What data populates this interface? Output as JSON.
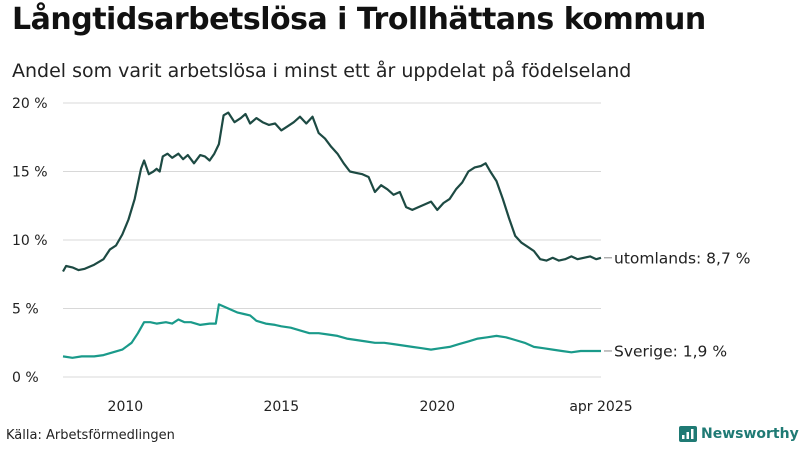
{
  "title": "Långtidsarbetslösa i Trollhättans kommun",
  "subtitle": "Andel som varit arbetslösa i minst ett år uppdelat på födelseland",
  "source": "Källa: Arbetsförmedlingen",
  "logo_text": "Newsworthy",
  "colors": {
    "utomlands": "#1d4a43",
    "sverige": "#1a9a8a",
    "grid": "#d8d8d8",
    "brand": "#1f7a74"
  },
  "chart_data": {
    "type": "line",
    "title": "Långtidsarbetslösa i Trollhättans kommun",
    "subtitle": "Andel som varit arbetslösa i minst ett år uppdelat på födelseland",
    "xlim": [
      2008.0,
      2025.25
    ],
    "ylim": [
      0,
      20
    ],
    "x_ticks": [
      {
        "value": 2010,
        "label": "2010"
      },
      {
        "value": 2015,
        "label": "2015"
      },
      {
        "value": 2020,
        "label": "2020"
      },
      {
        "value": 2025.25,
        "label": "apr 2025"
      }
    ],
    "y_ticks": [
      {
        "value": 0,
        "label": "0 %"
      },
      {
        "value": 5,
        "label": "5 %"
      },
      {
        "value": 10,
        "label": "10 %"
      },
      {
        "value": 15,
        "label": "15 %"
      },
      {
        "value": 20,
        "label": "20 %"
      }
    ],
    "grid": true,
    "series": [
      {
        "key": "utomlands",
        "end_label": "utomlands: 8,7 %",
        "x": [
          2008.0,
          2008.1,
          2008.3,
          2008.5,
          2008.7,
          2009.0,
          2009.3,
          2009.5,
          2009.7,
          2009.9,
          2010.1,
          2010.3,
          2010.5,
          2010.6,
          2010.75,
          2010.9,
          2011.0,
          2011.1,
          2011.2,
          2011.35,
          2011.5,
          2011.7,
          2011.85,
          2012.0,
          2012.2,
          2012.4,
          2012.55,
          2012.7,
          2012.85,
          2013.0,
          2013.15,
          2013.3,
          2013.5,
          2013.7,
          2013.85,
          2014.0,
          2014.2,
          2014.4,
          2014.6,
          2014.8,
          2015.0,
          2015.2,
          2015.4,
          2015.6,
          2015.8,
          2016.0,
          2016.2,
          2016.4,
          2016.6,
          2016.8,
          2017.0,
          2017.2,
          2017.4,
          2017.6,
          2017.8,
          2018.0,
          2018.2,
          2018.4,
          2018.6,
          2018.8,
          2019.0,
          2019.2,
          2019.4,
          2019.6,
          2019.8,
          2020.0,
          2020.2,
          2020.4,
          2020.6,
          2020.8,
          2021.0,
          2021.2,
          2021.4,
          2021.55,
          2021.7,
          2021.9,
          2022.1,
          2022.3,
          2022.5,
          2022.7,
          2022.9,
          2023.1,
          2023.3,
          2023.5,
          2023.7,
          2023.9,
          2024.1,
          2024.3,
          2024.5,
          2024.7,
          2024.9,
          2025.1,
          2025.25
        ],
        "values": [
          7.7,
          8.1,
          8.0,
          7.8,
          7.9,
          8.2,
          8.6,
          9.3,
          9.6,
          10.4,
          11.5,
          13.0,
          15.2,
          15.8,
          14.8,
          15.0,
          15.2,
          15.0,
          16.1,
          16.3,
          16.0,
          16.3,
          15.9,
          16.2,
          15.6,
          16.2,
          16.1,
          15.8,
          16.3,
          17.0,
          19.1,
          19.3,
          18.6,
          18.9,
          19.2,
          18.5,
          18.9,
          18.6,
          18.4,
          18.5,
          18.0,
          18.3,
          18.6,
          19.0,
          18.5,
          19.0,
          17.8,
          17.4,
          16.8,
          16.3,
          15.6,
          15.0,
          14.9,
          14.8,
          14.6,
          13.5,
          14.0,
          13.7,
          13.3,
          13.5,
          12.4,
          12.2,
          12.4,
          12.6,
          12.8,
          12.2,
          12.7,
          13.0,
          13.7,
          14.2,
          15.0,
          15.3,
          15.4,
          15.6,
          15.0,
          14.3,
          13.0,
          11.6,
          10.3,
          9.8,
          9.5,
          9.2,
          8.6,
          8.5,
          8.7,
          8.5,
          8.6,
          8.8,
          8.6,
          8.7,
          8.8,
          8.6,
          8.7
        ]
      },
      {
        "key": "sverige",
        "end_label": "Sverige: 1,9 %",
        "x": [
          2008.0,
          2008.3,
          2008.6,
          2009.0,
          2009.3,
          2009.6,
          2009.9,
          2010.2,
          2010.4,
          2010.6,
          2010.8,
          2011.0,
          2011.3,
          2011.5,
          2011.7,
          2011.9,
          2012.1,
          2012.4,
          2012.7,
          2012.9,
          2013.0,
          2013.2,
          2013.4,
          2013.6,
          2013.8,
          2014.0,
          2014.2,
          2014.5,
          2014.8,
          2015.0,
          2015.3,
          2015.6,
          2015.9,
          2016.2,
          2016.5,
          2016.8,
          2017.1,
          2017.4,
          2017.7,
          2018.0,
          2018.3,
          2018.6,
          2018.9,
          2019.2,
          2019.5,
          2019.8,
          2020.1,
          2020.4,
          2020.7,
          2021.0,
          2021.3,
          2021.6,
          2021.9,
          2022.2,
          2022.5,
          2022.8,
          2023.1,
          2023.4,
          2023.7,
          2024.0,
          2024.3,
          2024.6,
          2024.9,
          2025.25
        ],
        "values": [
          1.5,
          1.4,
          1.5,
          1.5,
          1.6,
          1.8,
          2.0,
          2.5,
          3.2,
          4.0,
          4.0,
          3.9,
          4.0,
          3.9,
          4.2,
          4.0,
          4.0,
          3.8,
          3.9,
          3.9,
          5.3,
          5.1,
          4.9,
          4.7,
          4.6,
          4.5,
          4.1,
          3.9,
          3.8,
          3.7,
          3.6,
          3.4,
          3.2,
          3.2,
          3.1,
          3.0,
          2.8,
          2.7,
          2.6,
          2.5,
          2.5,
          2.4,
          2.3,
          2.2,
          2.1,
          2.0,
          2.1,
          2.2,
          2.4,
          2.6,
          2.8,
          2.9,
          3.0,
          2.9,
          2.7,
          2.5,
          2.2,
          2.1,
          2.0,
          1.9,
          1.8,
          1.9,
          1.9,
          1.9
        ]
      }
    ]
  }
}
